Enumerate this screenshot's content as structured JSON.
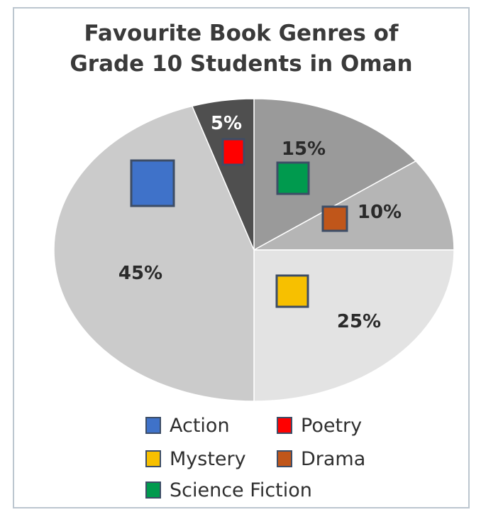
{
  "chart_data": {
    "type": "pie",
    "title": "Favourite Book Genres of Grade 10 Students in Oman",
    "title_lines": [
      "Favourite Book Genres of",
      "Grade 10 Students in Oman"
    ],
    "slices": [
      {
        "name": "Science Fiction",
        "value": 15,
        "label": "15%",
        "color": "#009a4e",
        "fill": "#9a9a9a"
      },
      {
        "name": "Drama",
        "value": 10,
        "label": "10%",
        "color": "#c0561a",
        "fill": "#b5b5b5"
      },
      {
        "name": "Mystery",
        "value": 25,
        "label": "25%",
        "color": "#f7c000",
        "fill": "#e3e3e3"
      },
      {
        "name": "Action",
        "value": 45,
        "label": "45%",
        "color": "#3f72c9",
        "fill": "#cbcbcb"
      },
      {
        "name": "Poetry",
        "value": 5,
        "label": "5%",
        "color": "#ff0000",
        "fill": "#4f4f4f"
      }
    ],
    "legend": [
      {
        "name": "Action",
        "color": "#3f72c9"
      },
      {
        "name": "Poetry",
        "color": "#ff0000"
      },
      {
        "name": "Mystery",
        "color": "#f7c000"
      },
      {
        "name": "Drama",
        "color": "#c0561a"
      },
      {
        "name": "Science Fiction",
        "color": "#009a4e"
      }
    ],
    "legend_placement": "bottom"
  }
}
